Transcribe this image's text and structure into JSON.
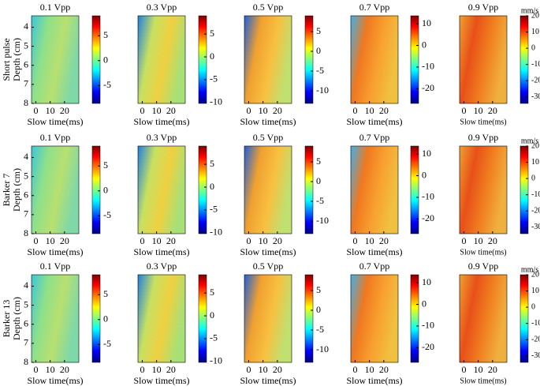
{
  "rows": [
    "Short pulse",
    "Barker 7",
    "Barker 13"
  ],
  "chart_data": [
    {
      "type": "heatmap",
      "title": "0.1 Vpp",
      "xlabel": "Slow time(ms)",
      "xlim": [
        -3,
        30
      ],
      "xticks": [
        0,
        10,
        20
      ],
      "ylabel": "Depth (cm)",
      "ylim": [
        3.4,
        8
      ],
      "yticks": [
        4,
        5,
        6,
        7,
        8
      ],
      "clim": [
        -8.6,
        9
      ],
      "cticks": [
        5,
        0,
        -5
      ]
    },
    {
      "type": "heatmap",
      "title": "0.3 Vpp",
      "xlabel": "Slow time(ms)",
      "xlim": [
        -3,
        30
      ],
      "xticks": [
        0,
        10,
        20
      ],
      "clim": [
        -10.2,
        9
      ],
      "cticks": [
        5,
        0,
        -5,
        -10
      ]
    },
    {
      "type": "heatmap",
      "title": "0.5 Vpp",
      "xlabel": "Slow time(ms)",
      "xlim": [
        -3,
        30
      ],
      "xticks": [
        0,
        10,
        20
      ],
      "clim": [
        -13.2,
        9
      ],
      "cticks": [
        5,
        0,
        -5,
        -10
      ]
    },
    {
      "type": "heatmap",
      "title": "0.7 Vpp",
      "xlabel": "Slow time(ms)",
      "xlim": [
        -3,
        30
      ],
      "xticks": [
        0,
        10,
        20
      ],
      "clim": [
        -26.8,
        13.7
      ],
      "cticks": [
        10,
        0,
        -10,
        -20
      ]
    },
    {
      "type": "heatmap",
      "title": "0.9 Vpp",
      "xlabel": "Slow time(ms)",
      "xlim": [
        -3,
        30
      ],
      "xticks": [
        0,
        10,
        20
      ],
      "clim": [
        -34,
        20
      ],
      "cticks": [
        20,
        10,
        0,
        -10,
        -20,
        -30
      ],
      "cunit": "mm/s"
    },
    {
      "type": "heatmap",
      "title": "0.1 Vpp",
      "xlabel": "Slow time(ms)",
      "xlim": [
        -3,
        30
      ],
      "xticks": [
        0,
        10,
        20
      ],
      "ylabel": "Depth (cm)",
      "ylim": [
        3.4,
        8
      ],
      "yticks": [
        4,
        5,
        6,
        7,
        8
      ],
      "clim": [
        -8.6,
        9
      ],
      "cticks": [
        5,
        0,
        -5
      ]
    },
    {
      "type": "heatmap",
      "title": "0.3 Vpp",
      "xlabel": "Slow time(ms)",
      "xlim": [
        -3,
        30
      ],
      "xticks": [
        0,
        10,
        20
      ],
      "clim": [
        -10.2,
        9
      ],
      "cticks": [
        5,
        0,
        -5,
        -10
      ]
    },
    {
      "type": "heatmap",
      "title": "0.5 Vpp",
      "xlabel": "Slow time(ms)",
      "xlim": [
        -3,
        30
      ],
      "xticks": [
        0,
        10,
        20
      ],
      "clim": [
        -13.2,
        9
      ],
      "cticks": [
        5,
        0,
        -5,
        -10
      ]
    },
    {
      "type": "heatmap",
      "title": "0.7 Vpp",
      "xlabel": "Slow time(ms)",
      "xlim": [
        -3,
        30
      ],
      "xticks": [
        0,
        10,
        20
      ],
      "clim": [
        -26.8,
        13.7
      ],
      "cticks": [
        10,
        0,
        -10,
        -20
      ]
    },
    {
      "type": "heatmap",
      "title": "0.9 Vpp",
      "xlabel": "Slow time(ms)",
      "xlim": [
        -3,
        30
      ],
      "xticks": [
        0,
        10,
        20
      ],
      "clim": [
        -34,
        20
      ],
      "cticks": [
        20,
        10,
        0,
        -10,
        -20,
        -30
      ],
      "cunit": "mm/s"
    },
    {
      "type": "heatmap",
      "title": "0.1 Vpp",
      "xlabel": "Slow time(ms)",
      "xlim": [
        -3,
        30
      ],
      "xticks": [
        0,
        10,
        20
      ],
      "ylabel": "Depth (cm)",
      "ylim": [
        3.4,
        8
      ],
      "yticks": [
        4,
        5,
        6,
        7,
        8
      ],
      "clim": [
        -8.6,
        9
      ],
      "cticks": [
        5,
        0,
        -5
      ]
    },
    {
      "type": "heatmap",
      "title": "0.3 Vpp",
      "xlabel": "Slow time(ms)",
      "xlim": [
        -3,
        30
      ],
      "xticks": [
        0,
        10,
        20
      ],
      "clim": [
        -10.2,
        9
      ],
      "cticks": [
        5,
        0,
        -5,
        -10
      ]
    },
    {
      "type": "heatmap",
      "title": "0.5 Vpp",
      "xlabel": "Slow time(ms)",
      "xlim": [
        -3,
        30
      ],
      "xticks": [
        0,
        10,
        20
      ],
      "clim": [
        -13.2,
        9
      ],
      "cticks": [
        5,
        0,
        -5,
        -10
      ]
    },
    {
      "type": "heatmap",
      "title": "0.7 Vpp",
      "xlabel": "Slow time(ms)",
      "xlim": [
        -3,
        30
      ],
      "xticks": [
        0,
        10,
        20
      ],
      "clim": [
        -26.8,
        13.7
      ],
      "cticks": [
        10,
        0,
        -10,
        -20
      ]
    },
    {
      "type": "heatmap",
      "title": "0.9 Vpp",
      "xlabel": "Slow time(ms)",
      "xlim": [
        -3,
        30
      ],
      "xticks": [
        0,
        10,
        20
      ],
      "clim": [
        -34,
        20
      ],
      "cticks": [
        20,
        10,
        0,
        -10,
        -20,
        -30
      ],
      "cunit": "mm/s"
    }
  ]
}
